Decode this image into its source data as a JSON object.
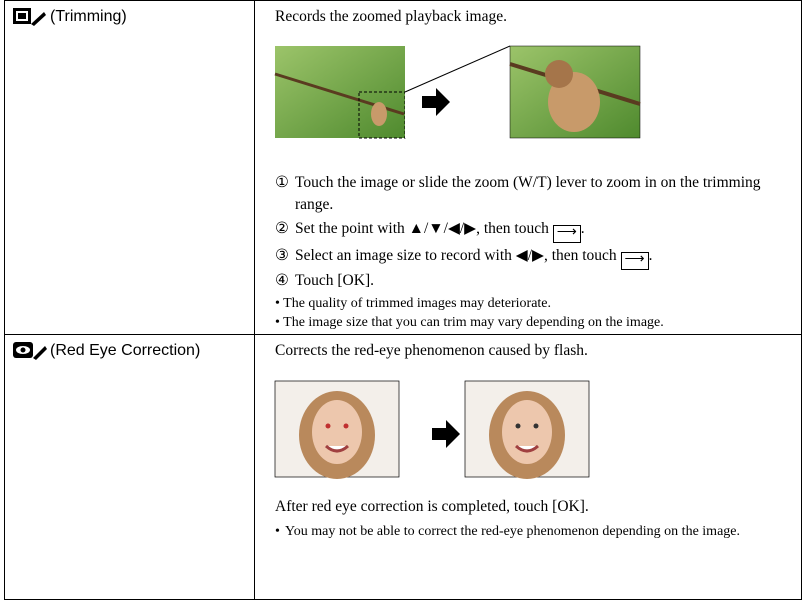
{
  "rows": [
    {
      "label": "(Trimming)",
      "intro": "Records the zoomed playback image.",
      "steps": [
        {
          "marker": "①",
          "text": "Touch the image or slide the zoom (W/T) lever to zoom in on the trimming range."
        },
        {
          "marker": "②",
          "text": "Set the point with ▲/▼/◀/▶, then touch",
          "after": "."
        },
        {
          "marker": "③",
          "text": "Select an image size to record with ◀/▶, then touch",
          "after": "."
        },
        {
          "marker": "④",
          "text": "Touch [OK]."
        }
      ],
      "notes": [
        "The quality of trimmed images may deteriorate.",
        "The image size that you can trim may vary depending on the image."
      ]
    },
    {
      "label": "(Red Eye Correction)",
      "intro": "Corrects the red-eye phenomenon caused by flash.",
      "after": "After red eye correction is completed, touch [OK].",
      "notes": [
        "You may not be able to correct the red-eye phenomenon depending on the image."
      ]
    }
  ]
}
